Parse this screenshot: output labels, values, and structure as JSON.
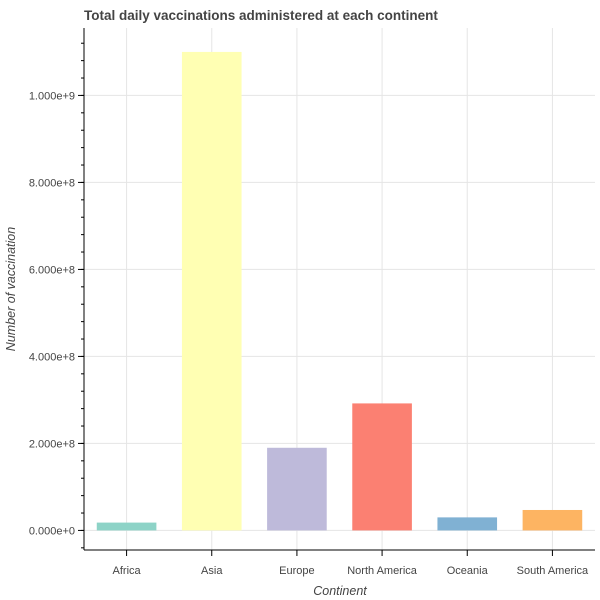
{
  "chart_data": {
    "type": "bar",
    "title": "Total daily vaccinations administered at each continent",
    "xlabel": "Continent",
    "ylabel": "Number of vaccination",
    "categories": [
      "Africa",
      "Asia",
      "Europe",
      "North America",
      "Oceania",
      "South America"
    ],
    "values": [
      18000000,
      1100000000,
      190000000,
      292000000,
      30000000,
      47000000
    ],
    "colors": [
      "#8dd3c7",
      "#ffffb3",
      "#bebada",
      "#fb8072",
      "#80b1d3",
      "#fdb462"
    ],
    "ylim": [
      -45000000,
      1155000000
    ],
    "yticks": [
      0,
      200000000,
      400000000,
      600000000,
      800000000,
      1000000000
    ],
    "ytick_labels": [
      "0.000e+0",
      "2.000e+8",
      "4.000e+8",
      "6.000e+8",
      "8.000e+8",
      "1.000e+9"
    ],
    "grid": true,
    "legend": false
  }
}
